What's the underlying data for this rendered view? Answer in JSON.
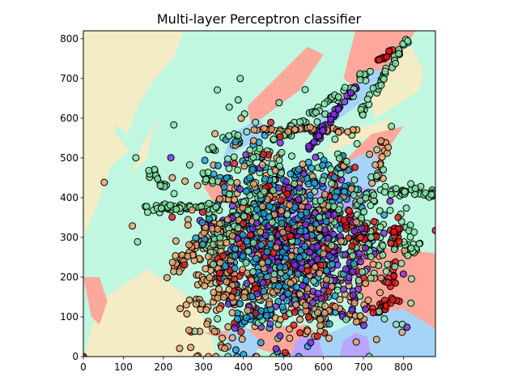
{
  "chart_data": {
    "type": "scatter",
    "title": "Multi-layer Perceptron classifier",
    "xlabel": "",
    "ylabel": "",
    "xlim": [
      0,
      880
    ],
    "ylim": [
      0,
      820
    ],
    "xticks": [
      0,
      100,
      200,
      300,
      400,
      500,
      600,
      700,
      800
    ],
    "yticks": [
      0,
      100,
      200,
      300,
      400,
      500,
      600,
      700,
      800
    ],
    "grid": false,
    "legend": "none",
    "classes": [
      {
        "name": "class-0",
        "point_color": "#7c2ee0",
        "region_color": "#b9a7ff"
      },
      {
        "name": "class-1",
        "point_color": "#1ea0d8",
        "region_color": "#a6d4f9"
      },
      {
        "name": "class-2",
        "point_color": "#82e6a8",
        "region_color": "#bff7e1"
      },
      {
        "name": "class-3",
        "point_color": "#eba26a",
        "region_color": "#f4ecc4"
      },
      {
        "name": "class-4",
        "point_color": "#e8161c",
        "region_color": "#fda89b"
      }
    ],
    "background_class": "class-2",
    "regions": [
      {
        "class": "class-3",
        "points": [
          [
            0,
            0
          ],
          [
            330,
            0
          ],
          [
            315,
            80
          ],
          [
            250,
            160
          ],
          [
            160,
            220
          ],
          [
            40,
            140
          ],
          [
            0,
            0
          ]
        ]
      },
      {
        "class": "class-3",
        "points": [
          [
            0,
            820
          ],
          [
            80,
            820
          ],
          [
            75,
            660
          ],
          [
            80,
            560
          ],
          [
            115,
            520
          ],
          [
            70,
            480
          ],
          [
            30,
            370
          ],
          [
            0,
            300
          ]
        ]
      },
      {
        "class": "class-3",
        "points": [
          [
            50,
            820
          ],
          [
            250,
            820
          ],
          [
            230,
            760
          ],
          [
            180,
            700
          ],
          [
            140,
            640
          ],
          [
            110,
            560
          ],
          [
            60,
            600
          ],
          [
            40,
            700
          ]
        ]
      },
      {
        "class": "class-3",
        "points": [
          [
            120,
            460
          ],
          [
            150,
            540
          ],
          [
            175,
            580
          ],
          [
            195,
            600
          ],
          [
            170,
            560
          ],
          [
            160,
            500
          ]
        ]
      },
      {
        "class": "class-3",
        "points": [
          [
            730,
            600
          ],
          [
            840,
            670
          ],
          [
            850,
            720
          ],
          [
            820,
            780
          ],
          [
            760,
            760
          ],
          [
            700,
            690
          ]
        ]
      },
      {
        "class": "class-3",
        "points": [
          [
            600,
            510
          ],
          [
            760,
            570
          ],
          [
            770,
            600
          ],
          [
            640,
            560
          ]
        ]
      },
      {
        "class": "class-4",
        "points": [
          [
            0,
            200
          ],
          [
            20,
            100
          ],
          [
            40,
            80
          ],
          [
            60,
            140
          ],
          [
            40,
            200
          ]
        ]
      },
      {
        "class": "class-4",
        "points": [
          [
            420,
            580
          ],
          [
            540,
            670
          ],
          [
            600,
            760
          ],
          [
            560,
            780
          ],
          [
            480,
            700
          ],
          [
            410,
            630
          ]
        ]
      },
      {
        "class": "class-4",
        "points": [
          [
            680,
            820
          ],
          [
            830,
            820
          ],
          [
            780,
            740
          ],
          [
            700,
            660
          ],
          [
            650,
            700
          ]
        ]
      },
      {
        "class": "class-4",
        "points": [
          [
            690,
            440
          ],
          [
            760,
            520
          ],
          [
            800,
            580
          ],
          [
            720,
            560
          ],
          [
            660,
            500
          ]
        ]
      },
      {
        "class": "class-4",
        "points": [
          [
            700,
            280
          ],
          [
            880,
            260
          ],
          [
            880,
            0
          ],
          [
            760,
            0
          ],
          [
            700,
            120
          ],
          [
            670,
            220
          ]
        ]
      },
      {
        "class": "class-4",
        "points": [
          [
            300,
            60
          ],
          [
            470,
            10
          ],
          [
            540,
            0
          ],
          [
            600,
            40
          ],
          [
            560,
            80
          ],
          [
            420,
            70
          ]
        ]
      },
      {
        "class": "class-4",
        "points": [
          [
            330,
            380
          ],
          [
            380,
            420
          ],
          [
            360,
            460
          ],
          [
            300,
            430
          ]
        ]
      },
      {
        "class": "class-1",
        "points": [
          [
            360,
            0
          ],
          [
            430,
            0
          ],
          [
            440,
            40
          ],
          [
            400,
            80
          ],
          [
            360,
            60
          ]
        ]
      },
      {
        "class": "class-1",
        "points": [
          [
            460,
            300
          ],
          [
            620,
            380
          ],
          [
            700,
            400
          ],
          [
            760,
            460
          ],
          [
            720,
            520
          ],
          [
            620,
            470
          ],
          [
            520,
            420
          ]
        ]
      },
      {
        "class": "class-1",
        "points": [
          [
            590,
            560
          ],
          [
            720,
            660
          ],
          [
            760,
            720
          ],
          [
            720,
            720
          ],
          [
            640,
            640
          ],
          [
            580,
            600
          ]
        ]
      },
      {
        "class": "class-1",
        "points": [
          [
            530,
            0
          ],
          [
            880,
            0
          ],
          [
            880,
            70
          ],
          [
            800,
            120
          ],
          [
            720,
            110
          ],
          [
            640,
            70
          ],
          [
            570,
            40
          ]
        ]
      },
      {
        "class": "class-1",
        "points": [
          [
            350,
            500
          ],
          [
            460,
            560
          ],
          [
            440,
            600
          ],
          [
            370,
            560
          ]
        ]
      },
      {
        "class": "class-0",
        "points": [
          [
            520,
            0
          ],
          [
            600,
            0
          ],
          [
            590,
            40
          ],
          [
            560,
            60
          ],
          [
            530,
            40
          ]
        ]
      },
      {
        "class": "class-0",
        "points": [
          [
            640,
            0
          ],
          [
            720,
            0
          ],
          [
            710,
            50
          ],
          [
            680,
            60
          ],
          [
            650,
            40
          ]
        ]
      },
      {
        "class": "class-0",
        "points": [
          [
            490,
            220
          ],
          [
            560,
            300
          ],
          [
            600,
            360
          ],
          [
            640,
            420
          ],
          [
            580,
            440
          ],
          [
            520,
            380
          ],
          [
            470,
            300
          ]
        ]
      },
      {
        "class": "class-0",
        "points": [
          [
            570,
            340
          ],
          [
            700,
            380
          ],
          [
            740,
            420
          ],
          [
            660,
            430
          ],
          [
            580,
            400
          ]
        ]
      }
    ],
    "clusters": [
      {
        "class": "class-3",
        "type": "blob",
        "center": [
          470,
          300
        ],
        "spread": [
          120,
          120
        ],
        "count": 260
      },
      {
        "class": "class-3",
        "type": "blob",
        "center": [
          330,
          150
        ],
        "spread": [
          45,
          70
        ],
        "count": 80
      },
      {
        "class": "class-3",
        "type": "blob",
        "center": [
          600,
          120
        ],
        "spread": [
          90,
          50
        ],
        "count": 80
      },
      {
        "class": "class-3",
        "type": "line",
        "from": [
          230,
          220
        ],
        "to": [
          330,
          330
        ],
        "width": 8,
        "count": 40
      },
      {
        "class": "class-3",
        "type": "line",
        "from": [
          430,
          570
        ],
        "to": [
          680,
          570
        ],
        "width": 3,
        "count": 45
      },
      {
        "class": "class-3",
        "type": "line",
        "from": [
          720,
          400
        ],
        "to": [
          750,
          540
        ],
        "width": 8,
        "count": 20
      },
      {
        "class": "class-2",
        "type": "blob",
        "center": [
          520,
          340
        ],
        "spread": [
          140,
          130
        ],
        "count": 260
      },
      {
        "class": "class-2",
        "type": "line",
        "from": [
          160,
          375
        ],
        "to": [
          330,
          375
        ],
        "width": 6,
        "count": 50
      },
      {
        "class": "class-2",
        "type": "line",
        "from": [
          160,
          470
        ],
        "to": [
          200,
          430
        ],
        "width": 6,
        "count": 15
      },
      {
        "class": "class-2",
        "type": "line",
        "from": [
          310,
          260
        ],
        "to": [
          480,
          430
        ],
        "width": 10,
        "count": 60
      },
      {
        "class": "class-2",
        "type": "line",
        "from": [
          420,
          500
        ],
        "to": [
          720,
          720
        ],
        "width": 6,
        "count": 60
      },
      {
        "class": "class-2",
        "type": "line",
        "from": [
          700,
          620
        ],
        "to": [
          820,
          820
        ],
        "width": 4,
        "count": 40
      },
      {
        "class": "class-2",
        "type": "blob",
        "center": [
          700,
          310
        ],
        "spread": [
          50,
          90
        ],
        "count": 90
      },
      {
        "class": "class-2",
        "type": "line",
        "from": [
          770,
          420
        ],
        "to": [
          880,
          410
        ],
        "width": 6,
        "count": 40
      },
      {
        "class": "class-2",
        "type": "blob",
        "center": [
          820,
          290
        ],
        "spread": [
          20,
          30
        ],
        "count": 20
      },
      {
        "class": "class-2",
        "type": "blob",
        "center": [
          310,
          450
        ],
        "spread": [
          10,
          8
        ],
        "count": 8
      },
      {
        "class": "class-2",
        "type": "blob",
        "center": [
          315,
          520
        ],
        "spread": [
          6,
          6
        ],
        "count": 5
      },
      {
        "class": "class-2",
        "type": "blob",
        "center": [
          390,
          540
        ],
        "spread": [
          6,
          6
        ],
        "count": 6
      },
      {
        "class": "class-1",
        "type": "blob",
        "center": [
          490,
          260
        ],
        "spread": [
          90,
          100
        ],
        "count": 250
      },
      {
        "class": "class-1",
        "type": "line",
        "from": [
          390,
          90
        ],
        "to": [
          470,
          110
        ],
        "width": 6,
        "count": 30
      },
      {
        "class": "class-1",
        "type": "blob",
        "center": [
          420,
          350
        ],
        "spread": [
          45,
          90
        ],
        "count": 60
      },
      {
        "class": "class-1",
        "type": "blob",
        "center": [
          350,
          450
        ],
        "spread": [
          10,
          5
        ],
        "count": 6
      },
      {
        "class": "class-1",
        "type": "blob",
        "center": [
          600,
          430
        ],
        "spread": [
          50,
          40
        ],
        "count": 40
      },
      {
        "class": "class-0",
        "type": "blob",
        "center": [
          540,
          290
        ],
        "spread": [
          95,
          100
        ],
        "count": 260
      },
      {
        "class": "class-0",
        "type": "line",
        "from": [
          560,
          520
        ],
        "to": [
          680,
          680
        ],
        "width": 3,
        "count": 50
      },
      {
        "class": "class-0",
        "type": "blob",
        "center": [
          610,
          200
        ],
        "spread": [
          50,
          50
        ],
        "count": 40
      },
      {
        "class": "class-4",
        "type": "blob",
        "center": [
          500,
          280
        ],
        "spread": [
          110,
          110
        ],
        "count": 140
      },
      {
        "class": "class-4",
        "type": "line",
        "from": [
          730,
          110
        ],
        "to": [
          780,
          150
        ],
        "width": 6,
        "count": 25
      },
      {
        "class": "class-4",
        "type": "line",
        "from": [
          735,
          740
        ],
        "to": [
          770,
          770
        ],
        "width": 3,
        "count": 12
      },
      {
        "class": "class-4",
        "type": "line",
        "from": [
          770,
          180
        ],
        "to": [
          780,
          340
        ],
        "width": 8,
        "count": 30
      },
      {
        "class": "class-4",
        "type": "line",
        "from": [
          650,
          330
        ],
        "to": [
          720,
          300
        ],
        "width": 20,
        "count": 30
      },
      {
        "class": "class-4",
        "type": "blob",
        "center": [
          360,
          200
        ],
        "spread": [
          20,
          30
        ],
        "count": 15
      },
      {
        "class": "class-4",
        "type": "blob",
        "center": [
          0,
          2
        ],
        "spread": [
          1,
          1
        ],
        "count": 2
      }
    ]
  }
}
